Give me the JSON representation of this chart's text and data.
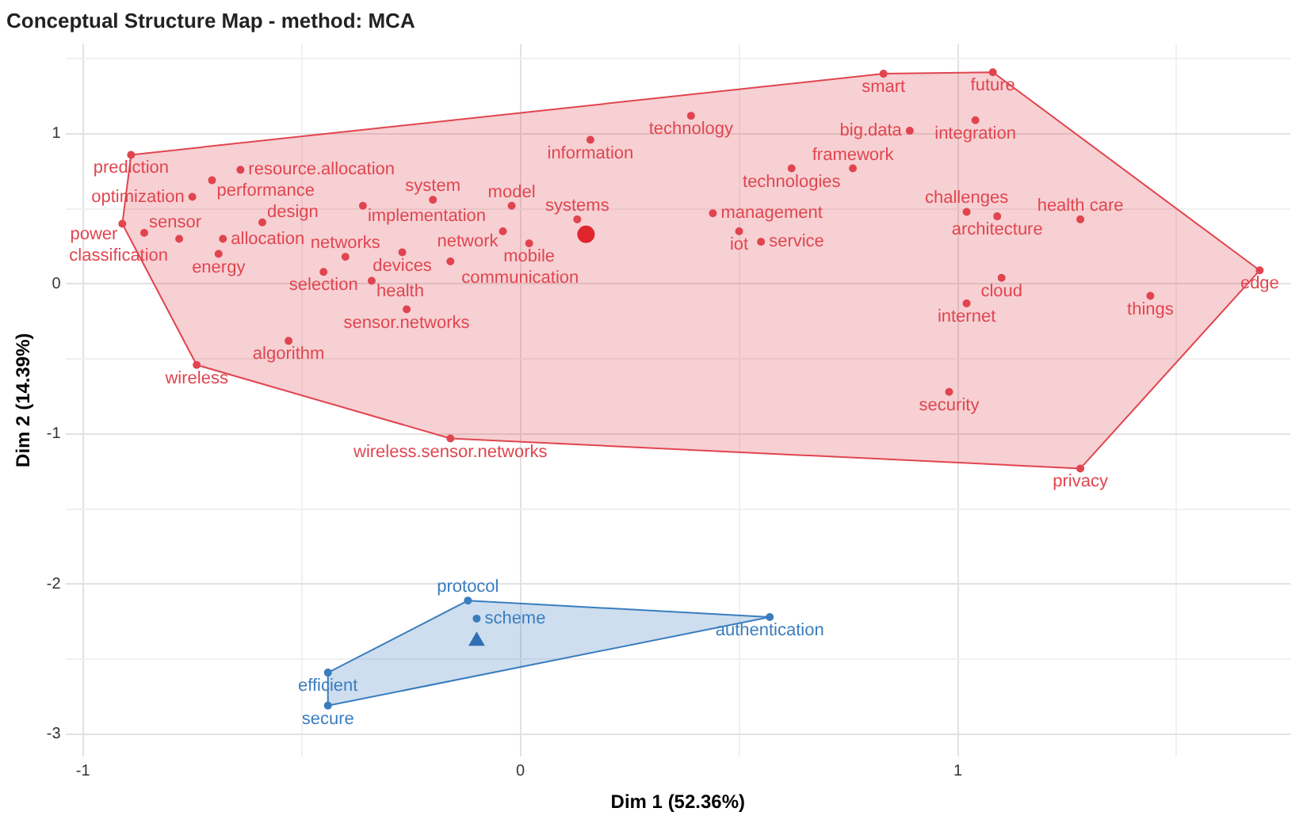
{
  "chart_data": {
    "type": "scatter",
    "title": "Conceptual Structure Map - method: MCA",
    "xlabel": "Dim 1 (52.36%)",
    "ylabel": "Dim 2 (14.39%)",
    "xlim": [
      -1.04,
      1.76
    ],
    "ylim": [
      -3.15,
      1.6
    ],
    "xticks": [
      -1,
      {
        "value": -0.5,
        "label": null
      },
      0,
      {
        "value": 0.5,
        "label": null
      },
      1,
      {
        "value": 1.5,
        "label": null
      }
    ],
    "yticks": [
      -3,
      {
        "value": -2.5,
        "label": null
      },
      -2,
      {
        "value": -1.5,
        "label": null
      },
      -1,
      {
        "value": -0.5,
        "label": null
      },
      0,
      {
        "value": 0.5,
        "label": null
      },
      1,
      {
        "value": 1.5,
        "label": null
      }
    ],
    "grid": true,
    "legend": false,
    "marker": "circle",
    "series": [
      {
        "color": "#e0454f",
        "x": [
          -0.89,
          -0.64,
          -0.705,
          -0.75,
          -0.91,
          -0.86,
          -0.68,
          -0.78,
          -0.69,
          -0.59,
          -0.36,
          -0.2,
          -0.02,
          -0.04,
          0.16,
          0.13,
          0.02,
          -0.4,
          -0.27,
          -0.16,
          -0.45,
          -0.34,
          -0.26,
          -0.53,
          -0.74,
          -0.16,
          0.83,
          1.08,
          1.04,
          0.39,
          0.89,
          0.62,
          0.76,
          0.44,
          0.5,
          0.55,
          1.02,
          1.09,
          1.28,
          1.1,
          1.02,
          1.69,
          1.44,
          0.98,
          1.28
        ],
        "values": [
          0.86,
          0.76,
          0.69,
          0.58,
          0.4,
          0.34,
          0.3,
          0.3,
          0.2,
          0.41,
          0.52,
          0.56,
          0.52,
          0.35,
          0.96,
          0.43,
          0.27,
          0.18,
          0.21,
          0.15,
          0.08,
          0.02,
          -0.17,
          -0.38,
          -0.54,
          -1.03,
          1.4,
          1.41,
          1.09,
          1.12,
          1.02,
          0.77,
          0.77,
          0.47,
          0.35,
          0.28,
          0.48,
          0.45,
          0.43,
          0.04,
          -0.13,
          0.09,
          -0.08,
          -0.72,
          -1.23
        ],
        "value_labels": [
          "prediction",
          "resource.allocation",
          "performance",
          "optimization",
          "power",
          "sensor",
          "allocation",
          "classification",
          "energy",
          "design",
          "implementation",
          "system",
          "model",
          "network",
          "information",
          "systems",
          "mobile",
          "networks",
          "devices",
          "communication",
          "selection",
          "health",
          "sensor.networks",
          "algorithm",
          "wireless",
          "wireless.sensor.networks",
          "smart",
          "future",
          "integration",
          "technology",
          "big.data",
          "technologies",
          "framework",
          "management",
          "iot",
          "service",
          "challenges",
          "architecture",
          "health care",
          "cloud",
          "internet",
          "edge",
          "things",
          "security",
          "privacy"
        ]
      },
      {
        "color": "#3a7dbf",
        "x": [
          -0.12,
          -0.1,
          0.57,
          -0.44,
          -0.44
        ],
        "values": [
          -2.11,
          -2.23,
          -2.22,
          -2.59,
          -2.81
        ],
        "value_labels": [
          "protocol",
          "scheme",
          "authentication",
          "efficient",
          "secure"
        ]
      },
      {
        "color": "#e0252f",
        "marker": "circle",
        "x": [
          0.15
        ],
        "values": [
          0.33
        ]
      },
      {
        "color": "#2f6fb5",
        "marker": "triangle",
        "x": [
          -0.1
        ],
        "values": [
          -2.38
        ]
      }
    ]
  }
}
